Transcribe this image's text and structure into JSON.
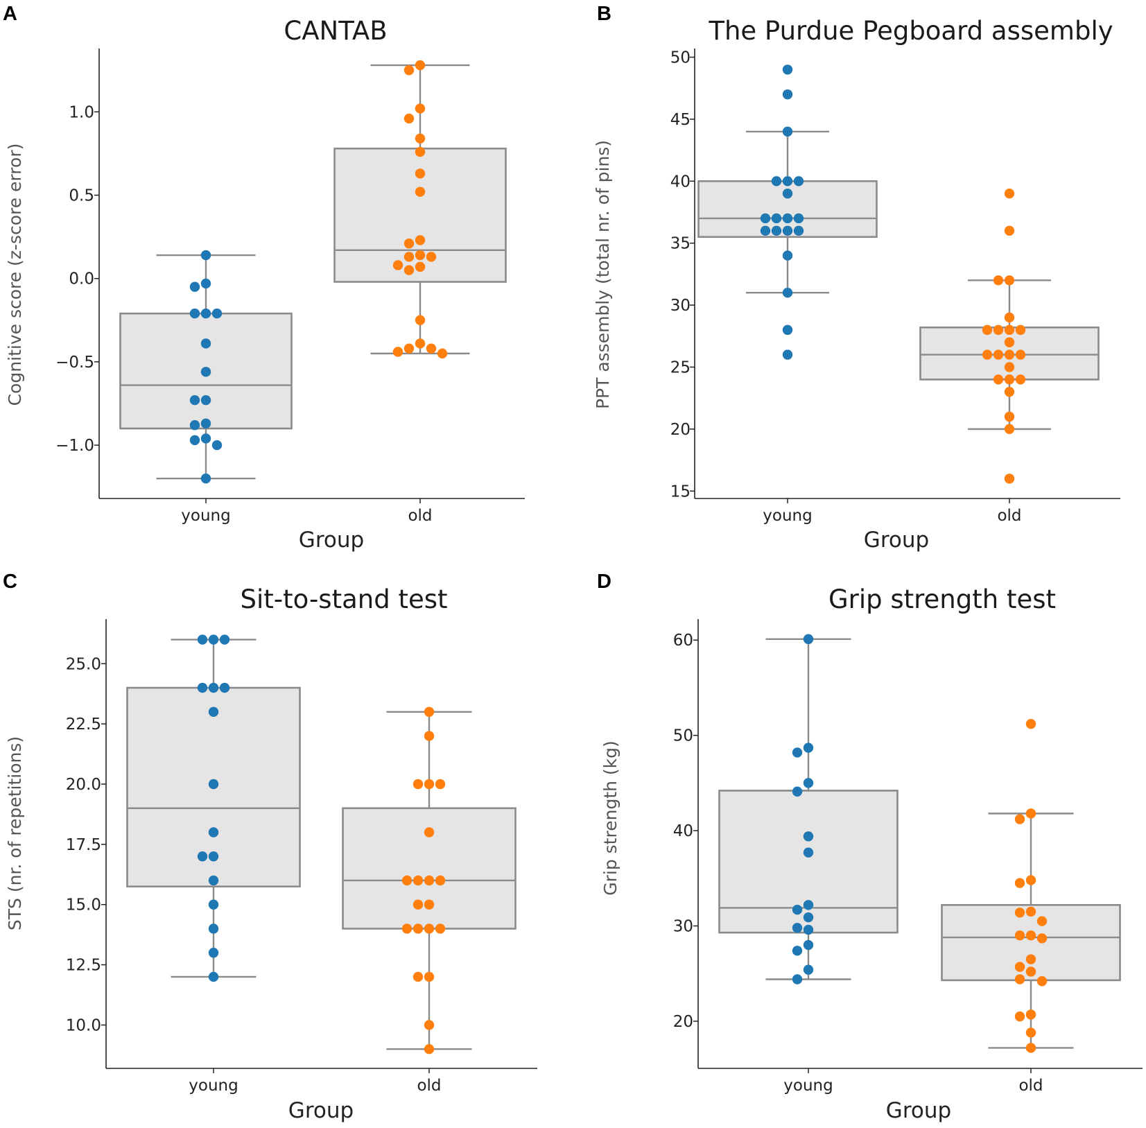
{
  "figure": {
    "panels": [
      "A",
      "B",
      "C",
      "D"
    ]
  },
  "chart_data": [
    {
      "type": "box",
      "panel": "A",
      "title": "CANTAB",
      "xlabel": "Group",
      "ylabel": "Cognitive score (z-score error)",
      "categories": [
        "young",
        "old"
      ],
      "ylim": [
        -1.32,
        1.38
      ],
      "yticks": [
        -1.0,
        -0.5,
        0.0,
        0.5,
        1.0
      ],
      "ytick_labels": [
        "−1.0",
        "−0.5",
        "0.0",
        "0.5",
        "1.0"
      ],
      "colors": {
        "young": "#1f77b4",
        "old": "#ff7f0e"
      },
      "boxes": [
        {
          "group": "young",
          "whisker_low": -1.2,
          "q1": -0.9,
          "median": -0.64,
          "q3": -0.21,
          "whisker_high": 0.14
        },
        {
          "group": "old",
          "whisker_low": -0.45,
          "q1": -0.02,
          "median": 0.17,
          "q3": 0.78,
          "whisker_high": 1.28
        }
      ],
      "points": {
        "young": [
          0.14,
          -0.03,
          -0.05,
          -0.21,
          -0.21,
          -0.21,
          -0.39,
          -0.56,
          -0.73,
          -0.73,
          -0.87,
          -0.88,
          -0.96,
          -0.97,
          -1.0,
          -1.2
        ],
        "old": [
          1.28,
          1.25,
          1.02,
          0.96,
          0.84,
          0.76,
          0.63,
          0.52,
          0.23,
          0.21,
          0.14,
          0.13,
          0.13,
          0.08,
          0.07,
          0.05,
          -0.25,
          -0.39,
          -0.42,
          -0.42,
          -0.44,
          -0.45
        ]
      }
    },
    {
      "type": "box",
      "panel": "B",
      "title": "The Purdue Pegboard assembly",
      "xlabel": "Group",
      "ylabel": "PPT assembly (total nr. of pins)",
      "categories": [
        "young",
        "old"
      ],
      "ylim": [
        14.4,
        50.7
      ],
      "yticks": [
        15,
        20,
        25,
        30,
        35,
        40,
        45,
        50
      ],
      "ytick_labels": [
        "15",
        "20",
        "25",
        "30",
        "35",
        "40",
        "45",
        "50"
      ],
      "colors": {
        "young": "#1f77b4",
        "old": "#ff7f0e"
      },
      "boxes": [
        {
          "group": "young",
          "whisker_low": 31,
          "q1": 35.5,
          "median": 37,
          "q3": 40,
          "whisker_high": 44
        },
        {
          "group": "old",
          "whisker_low": 20,
          "q1": 24,
          "median": 26,
          "q3": 28.2,
          "whisker_high": 32
        }
      ],
      "points": {
        "young": [
          49,
          47,
          44,
          40,
          40,
          40,
          39,
          37,
          37,
          37,
          37,
          36,
          36,
          36,
          36,
          34,
          31,
          28,
          26
        ],
        "old": [
          39,
          36,
          32,
          32,
          29,
          28,
          28,
          28,
          28,
          27,
          26,
          26,
          26,
          26,
          25,
          24,
          24,
          24,
          23,
          21,
          20,
          16
        ]
      }
    },
    {
      "type": "box",
      "panel": "C",
      "title": "Sit-to-stand test",
      "xlabel": "Group",
      "ylabel": "STS (nr. of repetitions)",
      "categories": [
        "young",
        "old"
      ],
      "ylim": [
        8.2,
        26.85
      ],
      "yticks": [
        10.0,
        12.5,
        15.0,
        17.5,
        20.0,
        22.5,
        25.0
      ],
      "ytick_labels": [
        "10.0",
        "12.5",
        "15.0",
        "17.5",
        "20.0",
        "22.5",
        "25.0"
      ],
      "colors": {
        "young": "#1f77b4",
        "old": "#ff7f0e"
      },
      "boxes": [
        {
          "group": "young",
          "whisker_low": 12,
          "q1": 15.75,
          "median": 19,
          "q3": 24,
          "whisker_high": 26
        },
        {
          "group": "old",
          "whisker_low": 9,
          "q1": 14,
          "median": 16,
          "q3": 19,
          "whisker_high": 23
        }
      ],
      "points": {
        "young": [
          26,
          26,
          26,
          24,
          24,
          24,
          23,
          20,
          18,
          17,
          17,
          16,
          15,
          14,
          13,
          12
        ],
        "old": [
          23,
          22,
          20,
          20,
          20,
          18,
          16,
          16,
          16,
          16,
          15,
          15,
          14,
          14,
          14,
          14,
          12,
          12,
          10,
          9
        ]
      }
    },
    {
      "type": "box",
      "panel": "D",
      "title": "Grip strength test",
      "xlabel": "Group",
      "ylabel": "Grip strength (kg)",
      "categories": [
        "young",
        "old"
      ],
      "ylim": [
        15.05,
        62.2
      ],
      "yticks": [
        20,
        30,
        40,
        50,
        60
      ],
      "ytick_labels": [
        "20",
        "30",
        "40",
        "50",
        "60"
      ],
      "colors": {
        "young": "#1f77b4",
        "old": "#ff7f0e"
      },
      "boxes": [
        {
          "group": "young",
          "whisker_low": 24.4,
          "q1": 29.3,
          "median": 31.9,
          "q3": 44.2,
          "whisker_high": 60.1
        },
        {
          "group": "old",
          "whisker_low": 17.2,
          "q1": 24.3,
          "median": 28.8,
          "q3": 32.2,
          "whisker_high": 41.8
        }
      ],
      "points": {
        "young": [
          60.1,
          48.7,
          48.2,
          45.0,
          44.1,
          39.4,
          37.7,
          32.2,
          31.7,
          30.9,
          29.8,
          29.6,
          28.0,
          27.4,
          25.4,
          24.4
        ],
        "old": [
          51.2,
          41.8,
          41.2,
          34.8,
          34.5,
          31.5,
          31.4,
          30.5,
          29.0,
          29.0,
          28.7,
          26.5,
          25.7,
          25.2,
          24.4,
          24.2,
          20.7,
          20.5,
          18.8,
          17.2
        ]
      }
    }
  ]
}
